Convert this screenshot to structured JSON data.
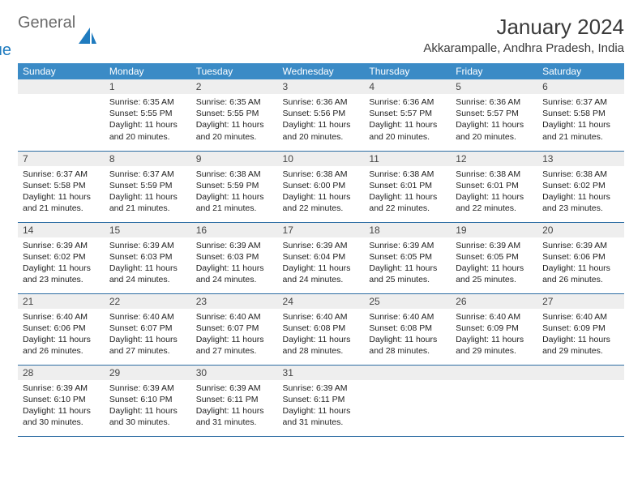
{
  "brand": {
    "general": "General",
    "blue": "Blue"
  },
  "title": "January 2024",
  "location": "Akkarampalle, Andhra Pradesh, India",
  "header_bg": "#3b8bc6",
  "header_fg": "#ffffff",
  "daynum_bg": "#eeeeee",
  "row_divider": "#2d6da3",
  "weekdays": [
    "Sunday",
    "Monday",
    "Tuesday",
    "Wednesday",
    "Thursday",
    "Friday",
    "Saturday"
  ],
  "weeks": [
    [
      null,
      {
        "n": "1",
        "sr": "6:35 AM",
        "ss": "5:55 PM",
        "dl": "11 hours and 20 minutes."
      },
      {
        "n": "2",
        "sr": "6:35 AM",
        "ss": "5:55 PM",
        "dl": "11 hours and 20 minutes."
      },
      {
        "n": "3",
        "sr": "6:36 AM",
        "ss": "5:56 PM",
        "dl": "11 hours and 20 minutes."
      },
      {
        "n": "4",
        "sr": "6:36 AM",
        "ss": "5:57 PM",
        "dl": "11 hours and 20 minutes."
      },
      {
        "n": "5",
        "sr": "6:36 AM",
        "ss": "5:57 PM",
        "dl": "11 hours and 20 minutes."
      },
      {
        "n": "6",
        "sr": "6:37 AM",
        "ss": "5:58 PM",
        "dl": "11 hours and 21 minutes."
      }
    ],
    [
      {
        "n": "7",
        "sr": "6:37 AM",
        "ss": "5:58 PM",
        "dl": "11 hours and 21 minutes."
      },
      {
        "n": "8",
        "sr": "6:37 AM",
        "ss": "5:59 PM",
        "dl": "11 hours and 21 minutes."
      },
      {
        "n": "9",
        "sr": "6:38 AM",
        "ss": "5:59 PM",
        "dl": "11 hours and 21 minutes."
      },
      {
        "n": "10",
        "sr": "6:38 AM",
        "ss": "6:00 PM",
        "dl": "11 hours and 22 minutes."
      },
      {
        "n": "11",
        "sr": "6:38 AM",
        "ss": "6:01 PM",
        "dl": "11 hours and 22 minutes."
      },
      {
        "n": "12",
        "sr": "6:38 AM",
        "ss": "6:01 PM",
        "dl": "11 hours and 22 minutes."
      },
      {
        "n": "13",
        "sr": "6:38 AM",
        "ss": "6:02 PM",
        "dl": "11 hours and 23 minutes."
      }
    ],
    [
      {
        "n": "14",
        "sr": "6:39 AM",
        "ss": "6:02 PM",
        "dl": "11 hours and 23 minutes."
      },
      {
        "n": "15",
        "sr": "6:39 AM",
        "ss": "6:03 PM",
        "dl": "11 hours and 24 minutes."
      },
      {
        "n": "16",
        "sr": "6:39 AM",
        "ss": "6:03 PM",
        "dl": "11 hours and 24 minutes."
      },
      {
        "n": "17",
        "sr": "6:39 AM",
        "ss": "6:04 PM",
        "dl": "11 hours and 24 minutes."
      },
      {
        "n": "18",
        "sr": "6:39 AM",
        "ss": "6:05 PM",
        "dl": "11 hours and 25 minutes."
      },
      {
        "n": "19",
        "sr": "6:39 AM",
        "ss": "6:05 PM",
        "dl": "11 hours and 25 minutes."
      },
      {
        "n": "20",
        "sr": "6:39 AM",
        "ss": "6:06 PM",
        "dl": "11 hours and 26 minutes."
      }
    ],
    [
      {
        "n": "21",
        "sr": "6:40 AM",
        "ss": "6:06 PM",
        "dl": "11 hours and 26 minutes."
      },
      {
        "n": "22",
        "sr": "6:40 AM",
        "ss": "6:07 PM",
        "dl": "11 hours and 27 minutes."
      },
      {
        "n": "23",
        "sr": "6:40 AM",
        "ss": "6:07 PM",
        "dl": "11 hours and 27 minutes."
      },
      {
        "n": "24",
        "sr": "6:40 AM",
        "ss": "6:08 PM",
        "dl": "11 hours and 28 minutes."
      },
      {
        "n": "25",
        "sr": "6:40 AM",
        "ss": "6:08 PM",
        "dl": "11 hours and 28 minutes."
      },
      {
        "n": "26",
        "sr": "6:40 AM",
        "ss": "6:09 PM",
        "dl": "11 hours and 29 minutes."
      },
      {
        "n": "27",
        "sr": "6:40 AM",
        "ss": "6:09 PM",
        "dl": "11 hours and 29 minutes."
      }
    ],
    [
      {
        "n": "28",
        "sr": "6:39 AM",
        "ss": "6:10 PM",
        "dl": "11 hours and 30 minutes."
      },
      {
        "n": "29",
        "sr": "6:39 AM",
        "ss": "6:10 PM",
        "dl": "11 hours and 30 minutes."
      },
      {
        "n": "30",
        "sr": "6:39 AM",
        "ss": "6:11 PM",
        "dl": "11 hours and 31 minutes."
      },
      {
        "n": "31",
        "sr": "6:39 AM",
        "ss": "6:11 PM",
        "dl": "11 hours and 31 minutes."
      },
      null,
      null,
      null
    ]
  ],
  "labels": {
    "sunrise": "Sunrise:",
    "sunset": "Sunset:",
    "daylight": "Daylight:"
  }
}
